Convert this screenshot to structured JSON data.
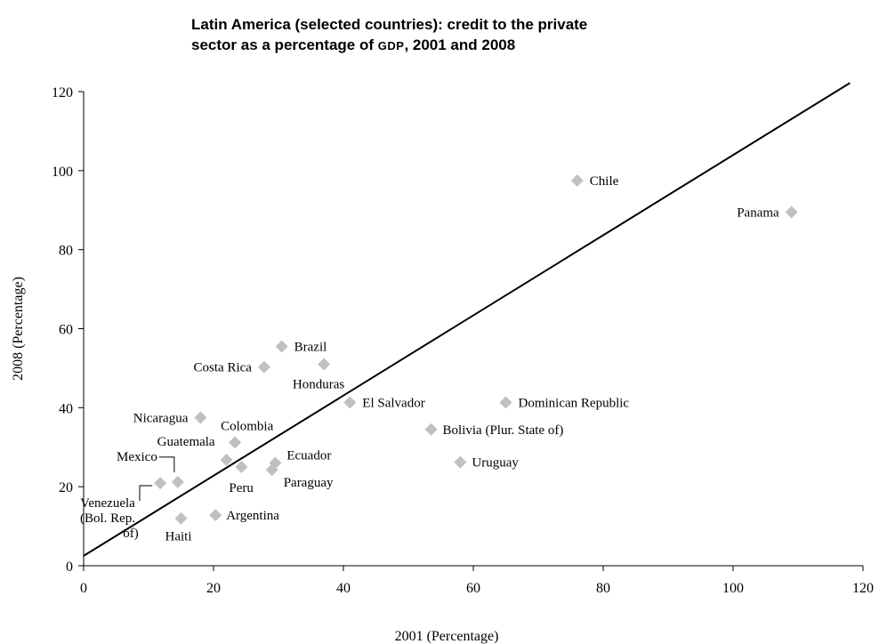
{
  "chart_data": {
    "type": "scatter",
    "title_parts": {
      "line1": "Latin America (selected countries): credit to the private",
      "line2_pre": "sector as a percentage of ",
      "line2_abbr": "GDP",
      "line2_post": ", 2001 and 2008"
    },
    "xlabel": "2001 (Percentage)",
    "ylabel": "2008 (Percentage)",
    "xlim": [
      0,
      120
    ],
    "ylim": [
      0,
      120
    ],
    "x_ticks": [
      "0",
      "20",
      "40",
      "60",
      "80",
      "100",
      "120"
    ],
    "y_ticks": [
      "0",
      "20",
      "40",
      "60",
      "80",
      "100",
      "120"
    ],
    "grid": false,
    "legend": "none",
    "marker": "diamond",
    "marker_color": "#c0c0c0",
    "trend_line": {
      "x": [
        0,
        118
      ],
      "y": [
        2.5,
        122.2
      ]
    },
    "points": [
      {
        "label": "Chile",
        "x": 76,
        "y": 97.5
      },
      {
        "label": "Panama",
        "x": 109,
        "y": 89.5
      },
      {
        "label": "Brazil",
        "x": 30.5,
        "y": 55.5
      },
      {
        "label": "Costa Rica",
        "x": 27.8,
        "y": 50.3
      },
      {
        "label": "Honduras",
        "x": 37,
        "y": 51
      },
      {
        "label": "El Salvador",
        "x": 41,
        "y": 41.3
      },
      {
        "label": "Dominican Republic",
        "x": 65,
        "y": 41.3
      },
      {
        "label": "Nicaragua",
        "x": 18,
        "y": 37.5
      },
      {
        "label": "Bolivia (Plur. State of)",
        "x": 53.5,
        "y": 34.5
      },
      {
        "label": "Colombia",
        "x": 23.3,
        "y": 31.2
      },
      {
        "label": "Guatemala",
        "x": 22,
        "y": 26.8
      },
      {
        "label": "Ecuador",
        "x": 29.5,
        "y": 26
      },
      {
        "label": "Uruguay",
        "x": 58,
        "y": 26.2
      },
      {
        "label": "Peru",
        "x": 24.3,
        "y": 25
      },
      {
        "label": "Paraguay",
        "x": 29,
        "y": 24.3
      },
      {
        "label": "Mexico",
        "x": 14.5,
        "y": 21.2
      },
      {
        "label": "Venezuela (Bol. Rep. of)",
        "x": 11.8,
        "y": 20.9
      },
      {
        "label": "Argentina",
        "x": 20.3,
        "y": 12.8
      },
      {
        "label": "Haiti",
        "x": 15,
        "y": 12
      }
    ]
  }
}
